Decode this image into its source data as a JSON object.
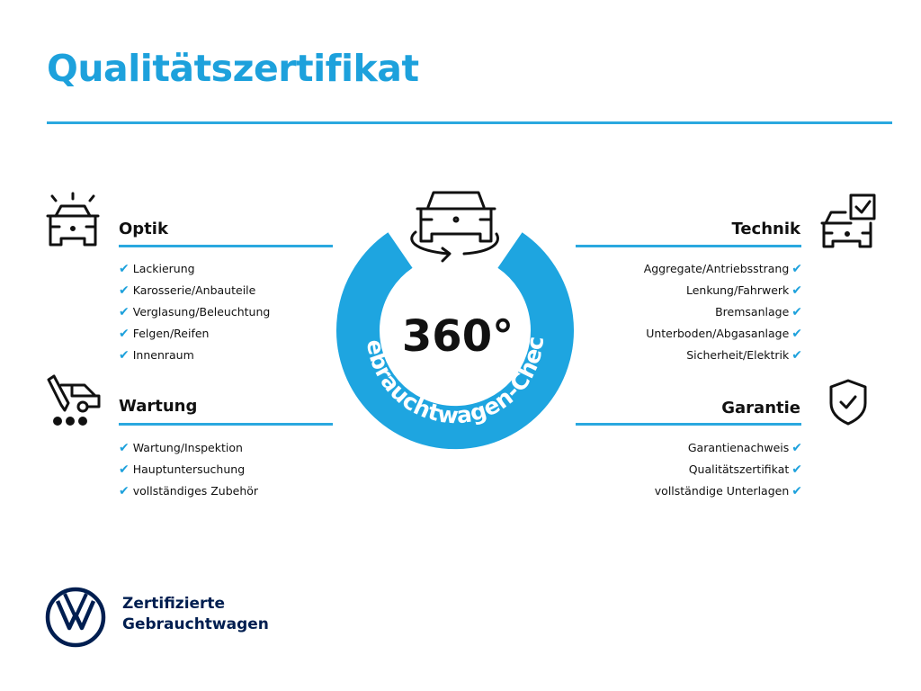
{
  "title": "Qualitätszertifikat",
  "colors": {
    "accent": "#1da1dc",
    "ring": "#1ea5e0",
    "brand_navy": "#001e50"
  },
  "center": {
    "number": "360°",
    "ring_text": "Gebrauchtwagen-Check",
    "icon": "car-rotate-icon"
  },
  "sections": {
    "optik": {
      "title": "Optik",
      "icon": "car-lights-icon",
      "items": [
        "Lackierung",
        "Karosserie/Anbauteile",
        "Verglasung/Beleuchtung",
        "Felgen/Reifen",
        "Innenraum"
      ]
    },
    "wartung": {
      "title": "Wartung",
      "icon": "service-truck-icon",
      "items": [
        "Wartung/Inspektion",
        "Hauptuntersuchung",
        "vollständiges Zubehör"
      ]
    },
    "technik": {
      "title": "Technik",
      "icon": "car-checklist-icon",
      "items": [
        "Aggregate/Antriebsstrang",
        "Lenkung/Fahrwerk",
        "Bremsanlage",
        "Unterboden/Abgasanlage",
        "Sicherheit/Elektrik"
      ]
    },
    "garantie": {
      "title": "Garantie",
      "icon": "shield-check-icon",
      "items": [
        "Garantienachweis",
        "Qualitätszertifikat",
        "vollständige Unterlagen"
      ]
    }
  },
  "check_mark": "✔",
  "footer": {
    "brand_logo": "VW",
    "line1": "Zertifizierte",
    "line2": "Gebrauchtwagen"
  }
}
